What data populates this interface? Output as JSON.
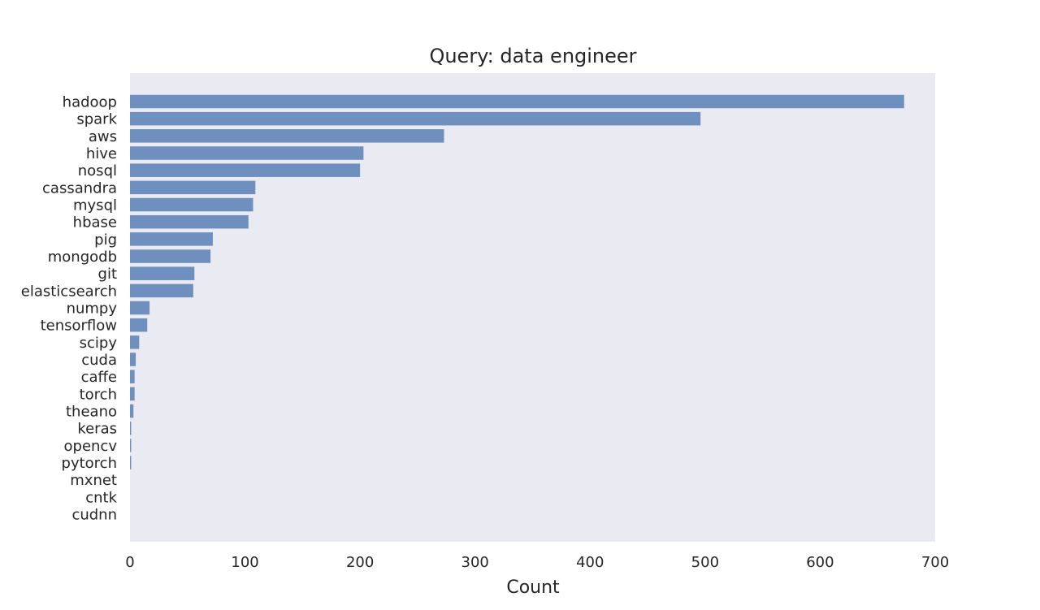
{
  "chart_data": {
    "type": "bar",
    "orientation": "horizontal",
    "title": "Query: data engineer",
    "xlabel": "Count",
    "ylabel": "",
    "xlim": [
      0,
      700
    ],
    "xticks": [
      0,
      100,
      200,
      300,
      400,
      500,
      600,
      700
    ],
    "grid": false,
    "bar_color": "#6f8fbf",
    "background_color": "#eaeaf2",
    "categories": [
      "hadoop",
      "spark",
      "aws",
      "hive",
      "nosql",
      "cassandra",
      "mysql",
      "hbase",
      "pig",
      "mongodb",
      "git",
      "elasticsearch",
      "numpy",
      "tensorflow",
      "scipy",
      "cuda",
      "caffe",
      "torch",
      "theano",
      "keras",
      "opencv",
      "pytorch",
      "mxnet",
      "cntk",
      "cudnn"
    ],
    "values": [
      673,
      496,
      273,
      203,
      200,
      109,
      107,
      103,
      72,
      70,
      56,
      55,
      17,
      15,
      8,
      5,
      4,
      4,
      3,
      1,
      1,
      1,
      0,
      0,
      0
    ]
  }
}
